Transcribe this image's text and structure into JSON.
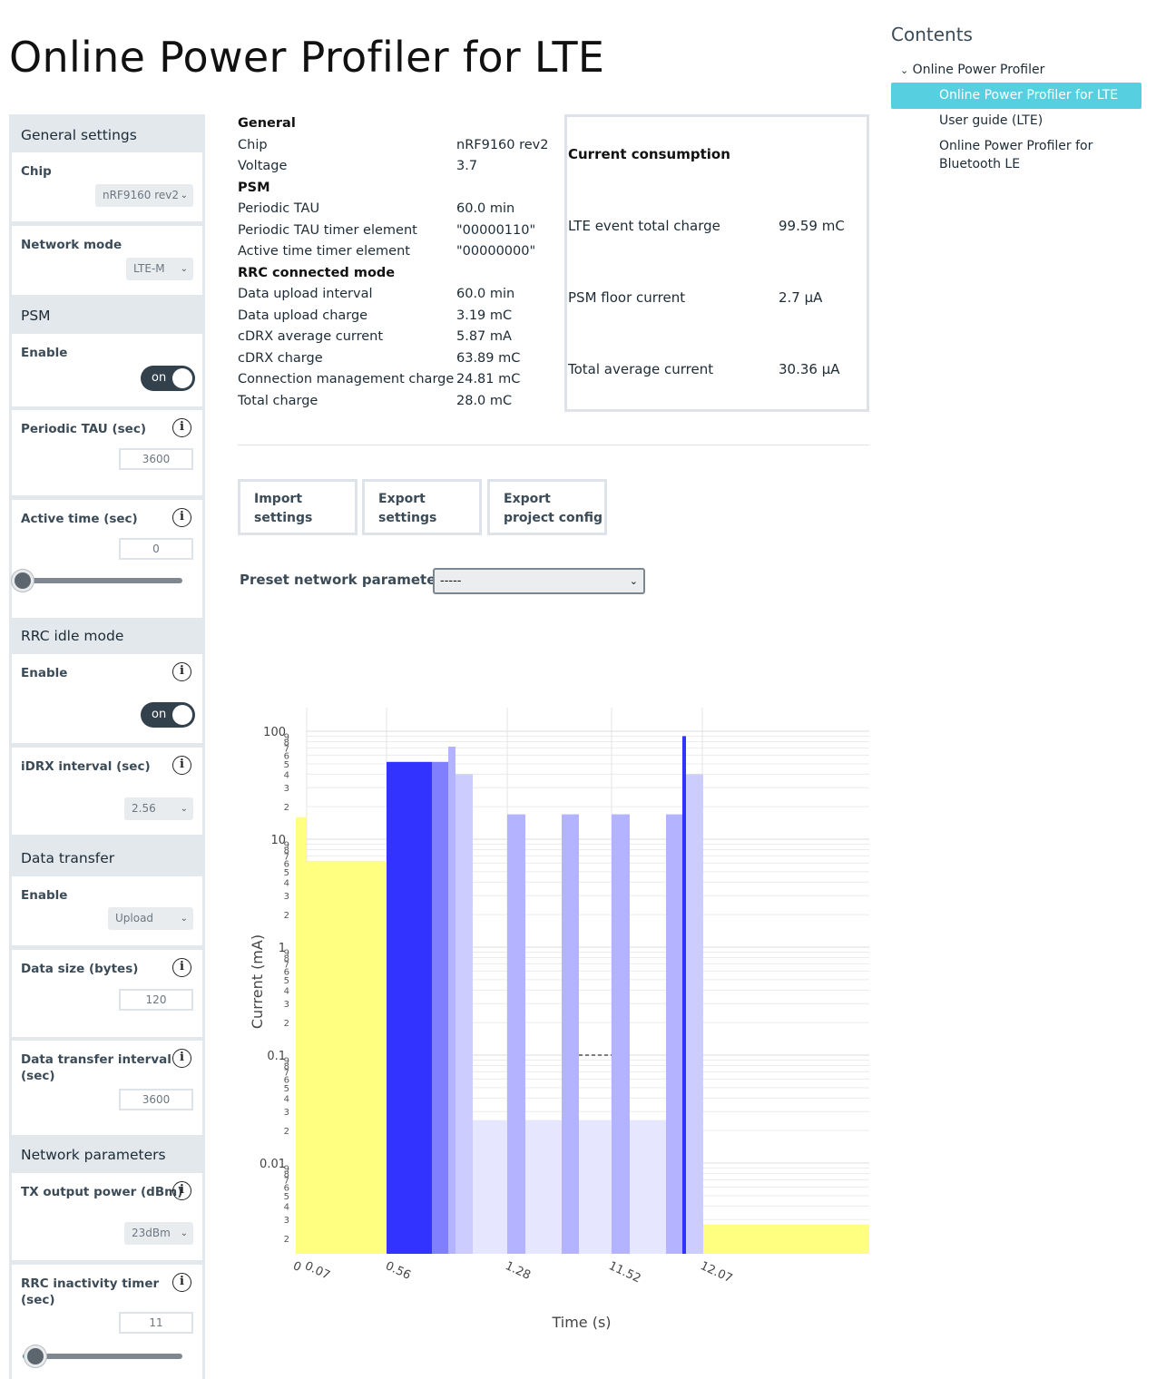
{
  "page_title": "Online Power Profiler for LTE",
  "sidebar": {
    "general_settings": "General settings",
    "chip_label": "Chip",
    "chip_value": "nRF9160 rev2",
    "network_mode_label": "Network mode",
    "network_mode_value": "LTE-M",
    "psm_section": "PSM",
    "psm_enable_label": "Enable",
    "psm_enable_state": "on",
    "periodic_tau_label": "Periodic TAU (sec)",
    "periodic_tau_value": "3600",
    "active_time_label": "Active time (sec)",
    "active_time_value": "0",
    "rrc_idle_section": "RRC idle mode",
    "rrc_idle_enable_label": "Enable",
    "rrc_idle_enable_state": "on",
    "idrx_label": "iDRX interval (sec)",
    "idrx_value": "2.56",
    "data_transfer_section": "Data transfer",
    "data_enable_label": "Enable",
    "data_enable_value": "Upload",
    "data_size_label": "Data size (bytes)",
    "data_size_value": "120",
    "data_interval_label_1": "Data transfer interval",
    "data_interval_label_2": "(sec)",
    "data_interval_value": "3600",
    "network_params_section": "Network parameters",
    "tx_power_label": "TX output power (dBm)",
    "tx_power_value": "23dBm",
    "rrc_timer_label_1": "RRC inactivity timer",
    "rrc_timer_label_2": "(sec)",
    "rrc_timer_value": "11",
    "info_icon": "i"
  },
  "info_table": {
    "rows": [
      {
        "k": "General",
        "v": "",
        "head": true
      },
      {
        "k": "Chip",
        "v": "nRF9160 rev2"
      },
      {
        "k": "Voltage",
        "v": "3.7"
      },
      {
        "k": "PSM",
        "v": "",
        "head": true
      },
      {
        "k": "Periodic TAU",
        "v": "60.0 min"
      },
      {
        "k": "Periodic TAU timer element",
        "v": "\"00000110\""
      },
      {
        "k": "Active time timer element",
        "v": "\"00000000\""
      },
      {
        "k": "RRC connected mode",
        "v": "",
        "head": true
      },
      {
        "k": "Data upload interval",
        "v": "60.0 min"
      },
      {
        "k": "Data upload charge",
        "v": "3.19 mC"
      },
      {
        "k": "cDRX average current",
        "v": "5.87 mA"
      },
      {
        "k": "cDRX charge",
        "v": "63.89 mC"
      },
      {
        "k": "Connection management charge",
        "v": "24.81 mC"
      },
      {
        "k": "Total charge",
        "v": "28.0 mC"
      }
    ]
  },
  "current_consumption": {
    "title": "Current consumption",
    "lte_event_label": "LTE event total charge",
    "lte_event_value": "99.59 mC",
    "psm_floor_label": "PSM floor current",
    "psm_floor_value": "2.7 µA",
    "total_avg_label": "Total average current",
    "total_avg_value": "30.36 µA"
  },
  "buttons": {
    "import_1": "Import",
    "import_2": "settings",
    "export_1": "Export",
    "export_2": "settings",
    "export_cfg_1": "Export",
    "export_cfg_2": "project config"
  },
  "preset": {
    "label": "Preset network parameters",
    "value": "-----"
  },
  "toc": {
    "title": "Contents",
    "parent": "Online Power Profiler",
    "items": [
      "Online Power Profiler for LTE",
      "User guide (LTE)",
      "Online Power Profiler for",
      "Bluetooth LE"
    ]
  },
  "colors": {
    "yellow": "#ffff80",
    "blue_strong": "#3333ff",
    "blue_mid": "#8080ff",
    "blue_light": "#b3b3ff",
    "blue_pale": "#ccccff",
    "blue_faint": "#e6e6ff"
  },
  "chart_data": {
    "type": "bar",
    "xlabel": "Time (s)",
    "ylabel": "Current (mA)",
    "y_scale": "log",
    "ylim": [
      0.0015,
      150
    ],
    "y_major_ticks": [
      "100",
      "10",
      "1",
      "0.1",
      "0.01"
    ],
    "x_tick_labels": [
      "0",
      "0.07",
      "0.56",
      "1.28",
      "11.52",
      "12.07"
    ],
    "segments": [
      {
        "t0": "0",
        "t1": "0.07",
        "current_ma": 16,
        "color": "yellow"
      },
      {
        "t0": "0.07",
        "t1": "0.56",
        "current_ma": 6.3,
        "color": "yellow"
      },
      {
        "t0": "0.56",
        "t1": "",
        "current_ma": 52,
        "color": "blue_strong"
      },
      {
        "t0": "",
        "t1": "",
        "current_ma": 52,
        "color": "blue_mid"
      },
      {
        "t0": "",
        "t1": "",
        "current_ma": 72,
        "color": "blue_light"
      },
      {
        "t0": "",
        "t1": "",
        "current_ma": 40,
        "color": "blue_pale"
      },
      {
        "t0": "",
        "t1": "1.28",
        "current_ma": 0.025,
        "color": "blue_faint"
      },
      {
        "t0": "1.28",
        "t1": "",
        "current_ma": 17,
        "color": "blue_light"
      },
      {
        "t0": "",
        "t1": "",
        "current_ma": 0.025,
        "color": "blue_faint"
      },
      {
        "t0": "",
        "t1": "",
        "current_ma": 17,
        "color": "blue_light"
      },
      {
        "t0": "11.52",
        "t1": "",
        "current_ma": 17,
        "color": "blue_light"
      },
      {
        "t0": "",
        "t1": "",
        "current_ma": 0.025,
        "color": "blue_faint"
      },
      {
        "t0": "",
        "t1": "",
        "current_ma": 17,
        "color": "blue_light"
      },
      {
        "t0": "",
        "t1": "",
        "current_ma": 90,
        "color": "blue_strong"
      },
      {
        "t0": "",
        "t1": "12.07",
        "current_ma": 40,
        "color": "blue_pale"
      },
      {
        "t0": "12.07",
        "t1": "",
        "current_ma": 0.0027,
        "color": "yellow"
      }
    ],
    "break_marker": {
      "current_ma": 0.1,
      "style": "dashed"
    },
    "grid": true
  }
}
